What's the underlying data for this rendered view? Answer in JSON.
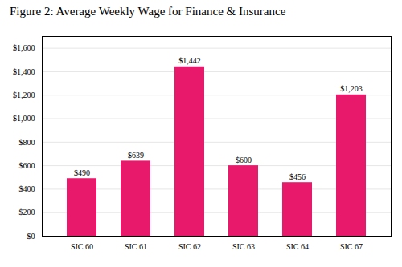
{
  "chart_data": {
    "type": "bar",
    "title": "Figure 2:  Average Weekly Wage for Finance & Insurance",
    "categories": [
      "SIC 60",
      "SIC 61",
      "SIC 62",
      "SIC 63",
      "SIC 64",
      "SIC 67"
    ],
    "values": [
      490,
      639,
      1442,
      600,
      456,
      1203
    ],
    "value_labels": [
      "$490",
      "$639",
      "$1,442",
      "$600",
      "$456",
      "$1,203"
    ],
    "data_labels": true,
    "color": "#E8196A",
    "ylim": [
      0,
      1700
    ],
    "yticks": [
      {
        "value": 0,
        "label": "$0"
      },
      {
        "value": 200,
        "label": "$200"
      },
      {
        "value": 400,
        "label": "$400"
      },
      {
        "value": 600,
        "label": "$600"
      },
      {
        "value": 800,
        "label": "$800"
      },
      {
        "value": 1000,
        "label": "$1,000"
      },
      {
        "value": 1200,
        "label": "$1,200"
      },
      {
        "value": 1400,
        "label": "$1,400"
      },
      {
        "value": 1600,
        "label": "$1,600"
      }
    ],
    "grid": true
  }
}
